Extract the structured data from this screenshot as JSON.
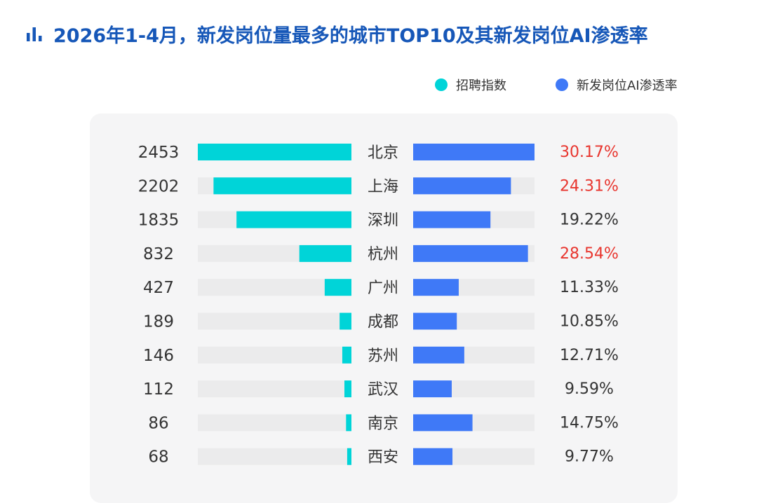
{
  "title": "2026年1-4月，新发岗位量最多的城市TOP10及其新发岗位AI渗透率",
  "colors": {
    "title": "#1657b8",
    "recruit": "#00d4d8",
    "ai": "#3f79f7",
    "track": "#ebebec",
    "highlight": "#e8352e",
    "text": "#333333",
    "panel": "#f5f5f6"
  },
  "chart_data": {
    "type": "bar",
    "title": "2026年1-4月，新发岗位量最多的城市TOP10及其新发岗位AI渗透率",
    "categories": [
      "北京",
      "上海",
      "深圳",
      "杭州",
      "广州",
      "成都",
      "苏州",
      "武汉",
      "南京",
      "西安"
    ],
    "series": [
      {
        "name": "招聘指数",
        "values": [
          2453,
          2202,
          1835,
          832,
          427,
          189,
          146,
          112,
          86,
          68
        ],
        "labels": [
          "2453",
          "2202",
          "1835",
          "832",
          "427",
          "189",
          "146",
          "112",
          "86",
          "68"
        ],
        "max": 2453
      },
      {
        "name": "新发岗位AI渗透率",
        "values": [
          30.17,
          24.31,
          19.22,
          28.54,
          11.33,
          10.85,
          12.71,
          9.59,
          14.75,
          9.77
        ],
        "labels": [
          "30.17%",
          "24.31%",
          "19.22%",
          "28.54%",
          "11.33%",
          "10.85%",
          "12.71%",
          "9.59%",
          "14.75%",
          "9.77%"
        ],
        "highlighted": [
          true,
          true,
          false,
          true,
          false,
          false,
          false,
          false,
          false,
          false
        ],
        "max": 30.17
      }
    ],
    "legend": "top-right"
  }
}
